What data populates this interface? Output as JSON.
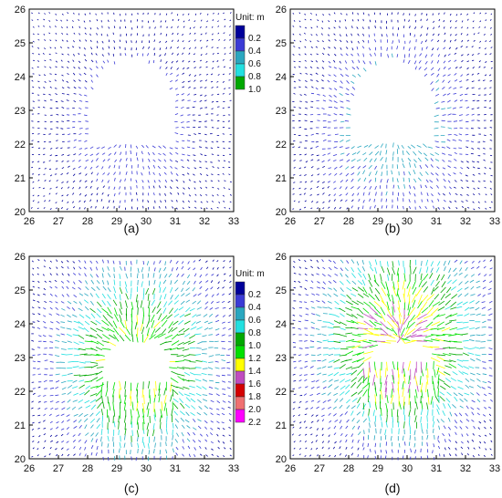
{
  "chart_data": [
    {
      "type": "vector-field",
      "caption": "(a)",
      "xlim": [
        26,
        33
      ],
      "ylim": [
        20,
        26
      ],
      "xticks": [
        "26",
        "27",
        "28",
        "29",
        "30",
        "31",
        "32",
        "33"
      ],
      "yticks": [
        "20",
        "21",
        "22",
        "23",
        "24",
        "25",
        "26"
      ],
      "opening": {
        "x_left": 28.0,
        "x_right": 31.0,
        "y_floor": 21.95,
        "y_springline": 23.0,
        "crown_height": 1.55
      },
      "max_displacement_m": 0.3,
      "legend": {
        "title": "Unit: m",
        "labels": [
          "0.2",
          "0.4",
          "0.6",
          "0.8",
          "1.0"
        ]
      }
    },
    {
      "type": "vector-field",
      "caption": "(b)",
      "xlim": [
        26,
        33
      ],
      "ylim": [
        20,
        26
      ],
      "xticks": [
        "26",
        "27",
        "28",
        "29",
        "30",
        "31",
        "32",
        "33"
      ],
      "yticks": [
        "20",
        "21",
        "22",
        "23",
        "24",
        "25",
        "26"
      ],
      "opening": {
        "x_left": 28.0,
        "x_right": 31.0,
        "y_floor": 21.95,
        "y_springline": 23.0,
        "crown_height": 1.55
      },
      "max_displacement_m": 0.5
    },
    {
      "type": "vector-field",
      "caption": "(c)",
      "xlim": [
        26,
        33
      ],
      "ylim": [
        20,
        26
      ],
      "xticks": [
        "26",
        "27",
        "28",
        "29",
        "30",
        "31",
        "32",
        "33"
      ],
      "yticks": [
        "20",
        "21",
        "22",
        "23",
        "24",
        "25",
        "26"
      ],
      "opening": {
        "x_left": 28.4,
        "x_right": 31.0,
        "y_floor": 22.35,
        "y_springline": 22.95,
        "crown_height": 0.7
      },
      "max_displacement_m": 1.1,
      "legend": {
        "title": "Unit: m",
        "labels": [
          "0.2",
          "0.4",
          "0.6",
          "0.8",
          "1.0",
          "1.2",
          "1.4",
          "1.6",
          "1.8",
          "2.0",
          "2.2"
        ]
      }
    },
    {
      "type": "vector-field",
      "caption": "(d)",
      "xlim": [
        26,
        33
      ],
      "ylim": [
        20,
        26
      ],
      "xticks": [
        "26",
        "27",
        "28",
        "29",
        "30",
        "31",
        "32",
        "33"
      ],
      "yticks": [
        "20",
        "21",
        "22",
        "23",
        "24",
        "25",
        "26"
      ],
      "opening": {
        "x_left": 28.7,
        "x_right": 30.9,
        "y_floor": 22.9,
        "y_springline": 23.1,
        "crown_height": 0.4
      },
      "max_displacement_m": 1.3
    }
  ],
  "colors": {
    "scale": [
      "#00009a",
      "#3b3bd6",
      "#2aa7c0",
      "#22e0e0",
      "#00a800",
      "#00e000",
      "#ffff00",
      "#c04cc0",
      "#d40000",
      "#f07070",
      "#ff00ff"
    ],
    "axis": "#000000"
  }
}
